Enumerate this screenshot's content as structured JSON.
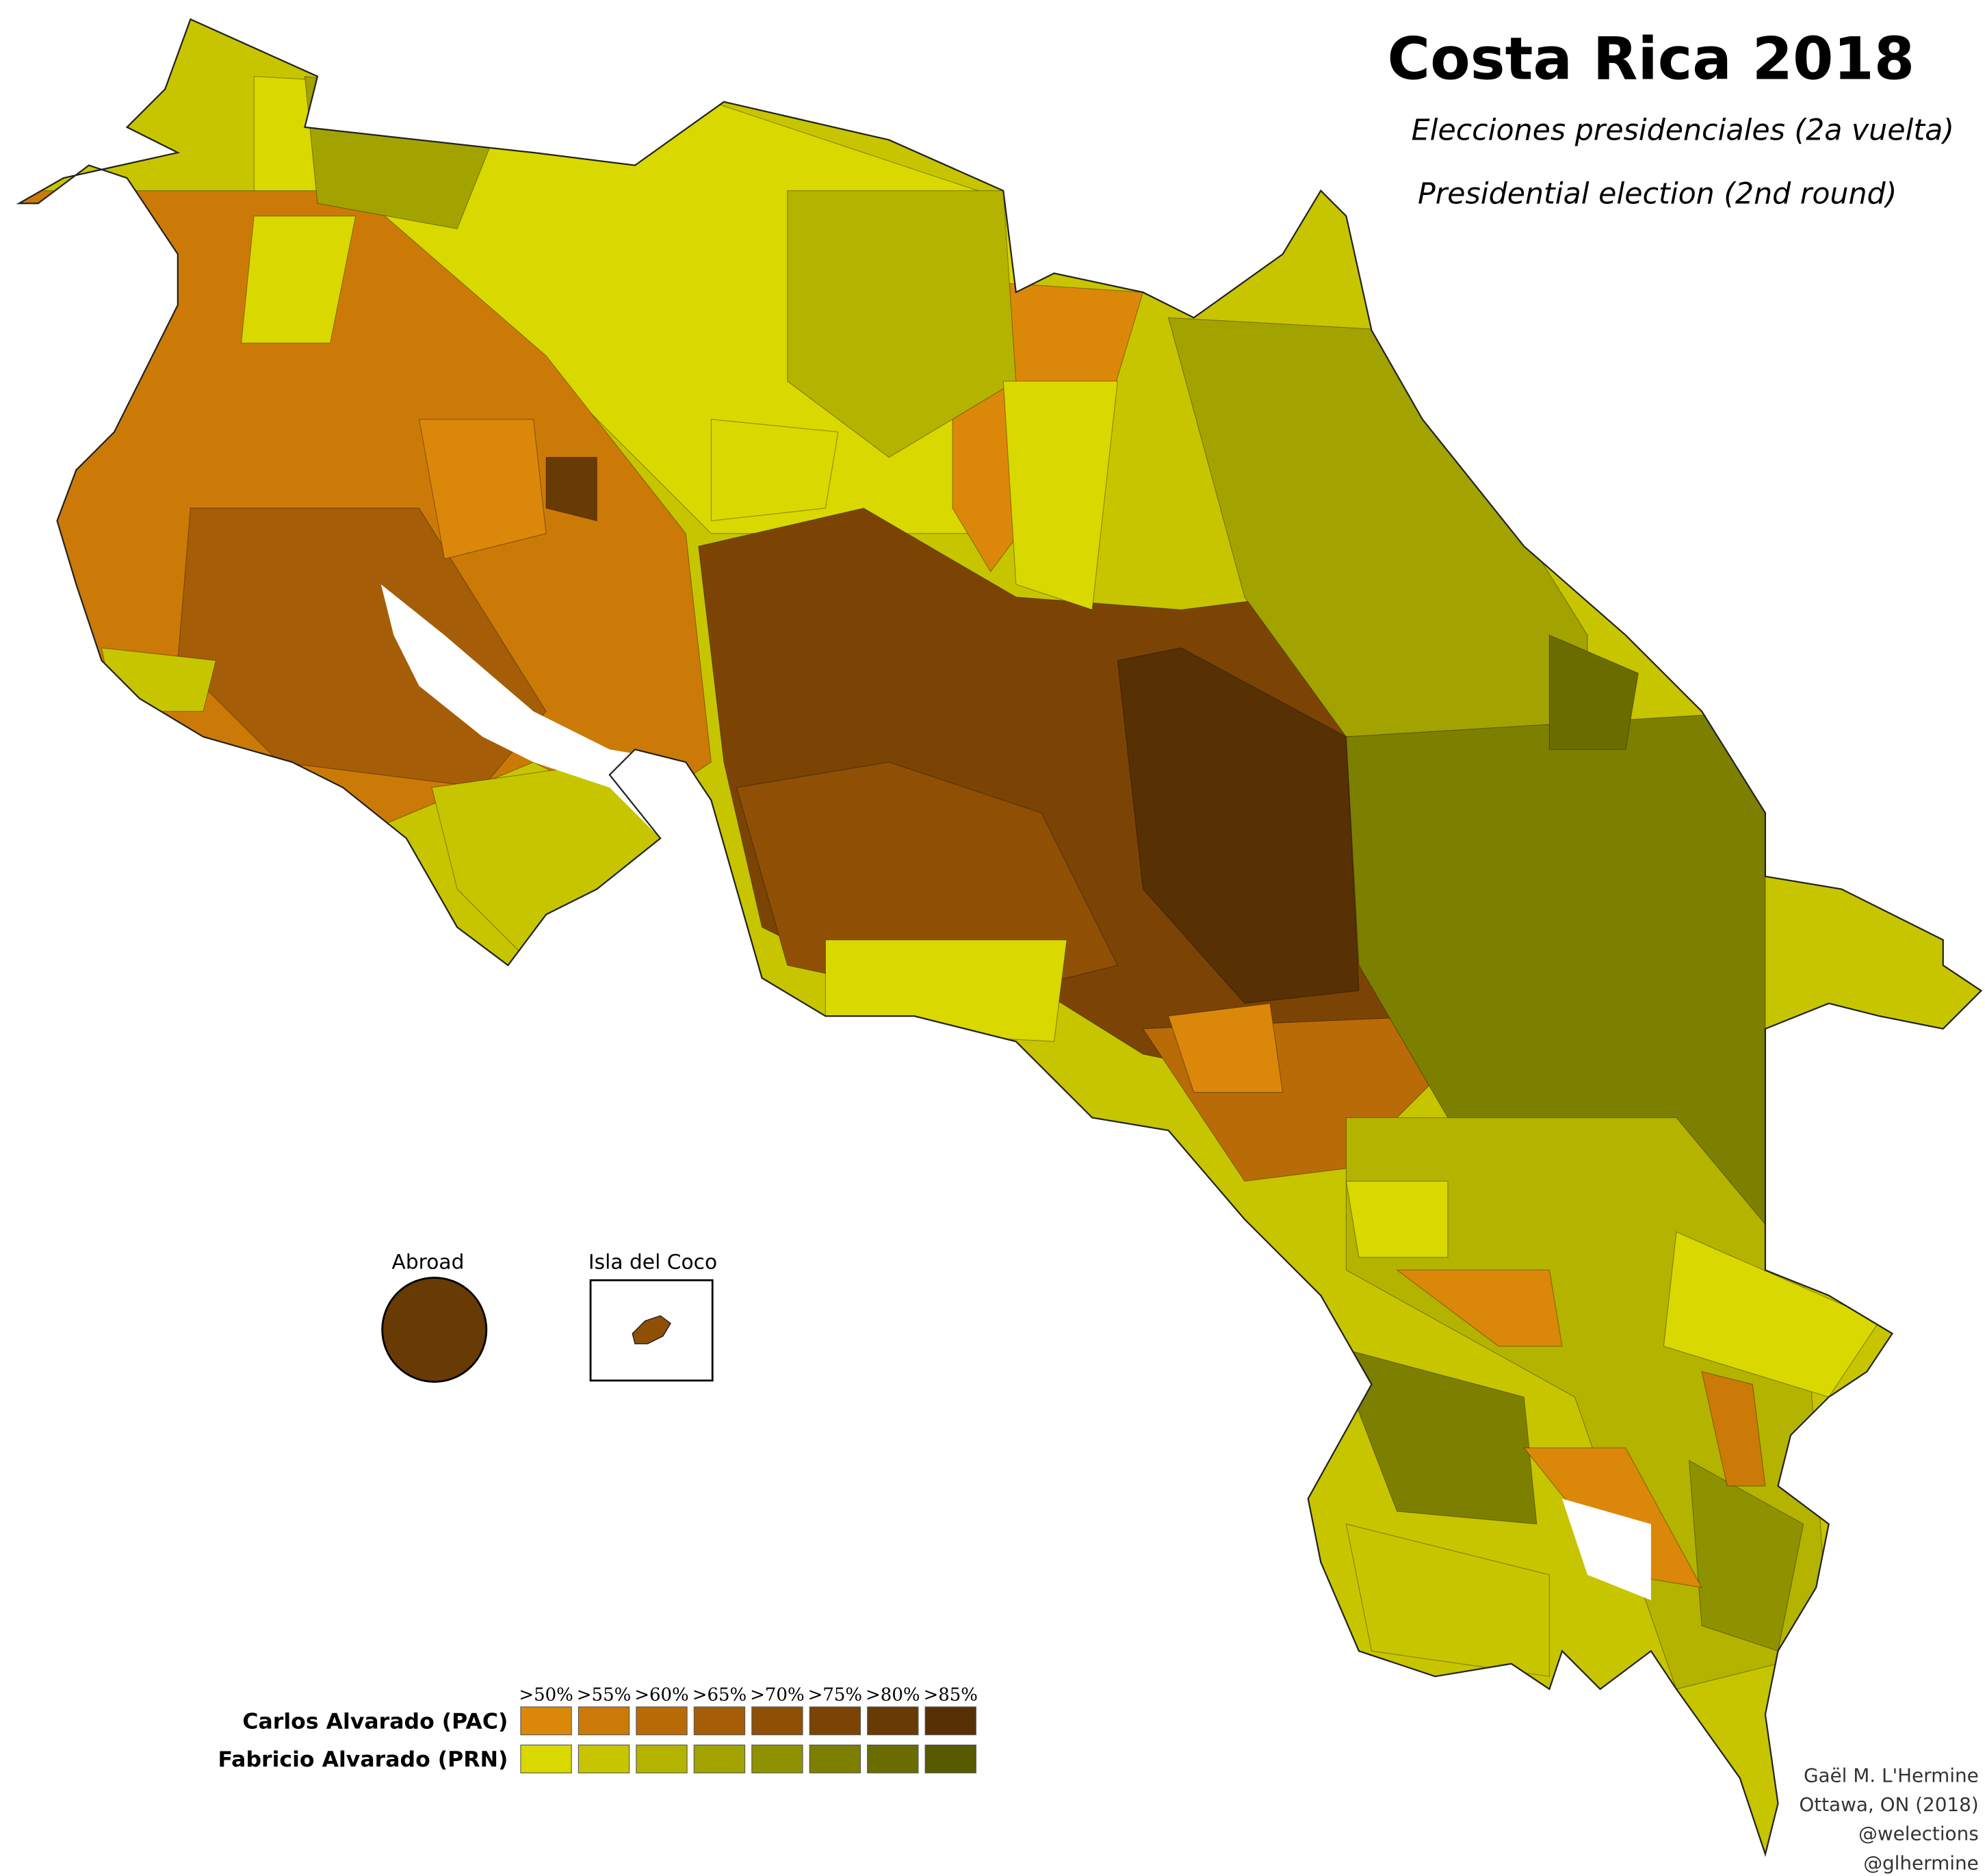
{
  "header": {
    "title": "Costa Rica 2018",
    "subtitle_es": "Elecciones presidenciales (2a vuelta)",
    "subtitle_en": "Presidential election (2nd round)"
  },
  "insets": {
    "abroad": "Abroad",
    "isla_del_coco": "Isla del Coco"
  },
  "legend": {
    "thresholds": [
      ">50%",
      ">55%",
      ">60%",
      ">65%",
      ">70%",
      ">75%",
      ">80%",
      ">85%"
    ],
    "parties": [
      {
        "name": "Carlos Alvarado (PAC)",
        "colors": [
          "#db880a",
          "#cc7a07",
          "#b96b08",
          "#a55e07",
          "#8f5006",
          "#7b4405",
          "#683a04",
          "#573003"
        ]
      },
      {
        "name": "Fabricio Alvarado (PRN)",
        "colors": [
          "#d9d800",
          "#c7c500",
          "#b4b300",
          "#a2a300",
          "#8f9200",
          "#7c7f00",
          "#6a6c00",
          "#585a00"
        ]
      }
    ]
  },
  "credits": [
    "Gaël M. L'Hermine",
    "Ottawa, ON (2018)",
    "@welections",
    "@glhermine"
  ]
}
